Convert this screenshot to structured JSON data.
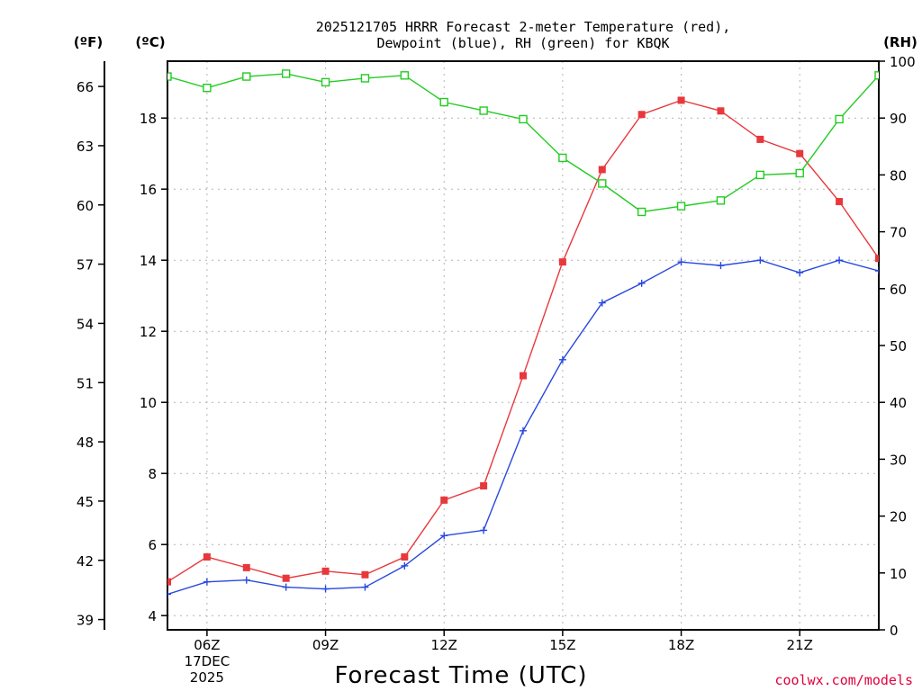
{
  "chart_data": {
    "type": "line",
    "title_lines": [
      "2025121705 HRRR Forecast 2-meter Temperature (red),",
      "Dewpoint (blue), RH (green) for KBQK"
    ],
    "xlabel": "Forecast Time (UTC)",
    "credit": "coolwx.com/models",
    "units": {
      "fahrenheit": "(ºF)",
      "celsius": "(ºC)",
      "rh": "(RH)"
    },
    "x_hours": [
      5,
      6,
      7,
      8,
      9,
      10,
      11,
      12,
      13,
      14,
      15,
      16,
      17,
      18,
      19,
      20,
      21,
      22,
      23
    ],
    "xlim": [
      5,
      23
    ],
    "x_ticks": [
      {
        "hour": 6,
        "lines": [
          "06Z",
          "17DEC",
          "2025"
        ]
      },
      {
        "hour": 9,
        "lines": [
          "09Z"
        ]
      },
      {
        "hour": 12,
        "lines": [
          "12Z"
        ]
      },
      {
        "hour": 15,
        "lines": [
          "15Z"
        ]
      },
      {
        "hour": 18,
        "lines": [
          "18Z"
        ]
      },
      {
        "hour": 21,
        "lines": [
          "21Z"
        ]
      }
    ],
    "celsius_axis": {
      "ylim": [
        3.6,
        19.6
      ],
      "ticks": [
        4,
        6,
        8,
        10,
        12,
        14,
        16,
        18
      ]
    },
    "fahrenheit_ticks": [
      39,
      42,
      45,
      48,
      51,
      54,
      57,
      60,
      63,
      66
    ],
    "rh_axis": {
      "ylim": [
        0,
        100
      ],
      "ticks": [
        0,
        10,
        20,
        30,
        40,
        50,
        60,
        70,
        80,
        90,
        100
      ]
    },
    "series": [
      {
        "name": "Temperature",
        "axis": "celsius",
        "color": "#e8383c",
        "marker": "filled-square",
        "values": [
          4.95,
          5.65,
          5.35,
          5.05,
          5.25,
          5.15,
          5.65,
          7.25,
          7.65,
          10.75,
          13.95,
          16.55,
          18.1,
          18.5,
          18.2,
          17.4,
          17.0,
          15.65,
          14.05
        ]
      },
      {
        "name": "Dewpoint",
        "axis": "celsius",
        "color": "#2848e0",
        "marker": "plus",
        "values": [
          4.6,
          4.95,
          5.0,
          4.8,
          4.75,
          4.8,
          5.4,
          6.25,
          6.4,
          9.2,
          11.2,
          12.8,
          13.35,
          13.95,
          13.85,
          14.0,
          13.65,
          14.0,
          13.7
        ]
      },
      {
        "name": "RH",
        "axis": "rh",
        "color": "#22cc22",
        "marker": "open-square",
        "values": [
          97.3,
          95.3,
          97.3,
          97.8,
          96.3,
          97.0,
          97.5,
          92.8,
          91.3,
          89.8,
          83.0,
          78.5,
          73.5,
          74.5,
          75.5,
          80.0,
          80.3,
          89.8,
          97.5
        ]
      }
    ]
  }
}
